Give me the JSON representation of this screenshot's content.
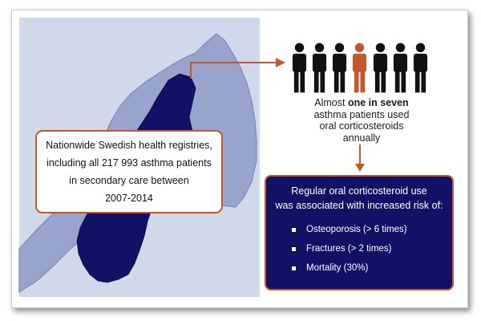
{
  "colors": {
    "ocean": "#cfd9ea",
    "neighbor_country": "#99a4cc",
    "neighbor_border": "#7e89b6",
    "sweden": "#111166",
    "accent_orange": "#c2592e",
    "person_default": "#111111",
    "person_highlight": "#c2592e"
  },
  "registry_box": {
    "lines": [
      "Nationwide Swedish health registries,",
      "including all 217 993 asthma patients",
      "in secondary care between",
      "2007-2014"
    ]
  },
  "people_graphic": {
    "count": 7,
    "highlighted_index": 3,
    "icon": "person-icon"
  },
  "statistic": {
    "prefix": "Almost ",
    "highlight": "one in seven",
    "line2": "asthma patients used",
    "line3": "oral corticosteroids",
    "line4": "annually"
  },
  "risk_box": {
    "heading_line1": "Regular oral corticosteroid use",
    "heading_line2": "was associated with increased risk of:",
    "items": [
      "Osteoporosis (> 6 times)",
      "Fractures (> 2 times)",
      "Mortality (30%)"
    ]
  }
}
